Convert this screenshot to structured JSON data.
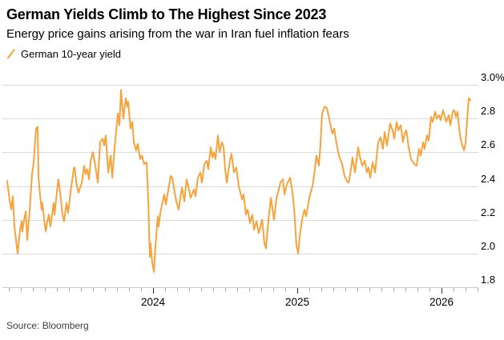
{
  "colors": {
    "accent_orange": "#F7A33C",
    "gridline": "#DADADA",
    "axis_line": "#C9C9C9",
    "minor_tick": "#ABABAB",
    "major_tick": "#333333",
    "text": "#000000"
  },
  "chart_data": {
    "type": "line",
    "title": "German Yields Climb to The Highest Since 2023",
    "subtitle": "Energy price gains arising from the war in Iran fuel inflation fears",
    "source": "Source: Bloomberg",
    "legend_position": "top-left",
    "grid": "horizontal",
    "y_axis": {
      "side": "right",
      "range": [
        1.8,
        3.0
      ],
      "ticks": [
        {
          "value": 3.0,
          "label": "3.0%"
        },
        {
          "value": 2.8,
          "label": "2.8"
        },
        {
          "value": 2.6,
          "label": "2.6"
        },
        {
          "value": 2.4,
          "label": "2.4"
        },
        {
          "value": 2.2,
          "label": "2.2"
        },
        {
          "value": 2.0,
          "label": "2.0"
        },
        {
          "value": 1.8,
          "label": "1.8"
        }
      ]
    },
    "x_axis": {
      "range": [
        2022.95,
        2026.26
      ],
      "minor_tick_interval_years": 0.08333,
      "ticks": [
        {
          "value": 2024,
          "label": "2024"
        },
        {
          "value": 2025,
          "label": "2025"
        },
        {
          "value": 2026,
          "label": "2026"
        }
      ]
    },
    "series": [
      {
        "name": "German 10-year yield",
        "color": "#F7A33C",
        "points": [
          [
            2022.989,
            2.43
          ],
          [
            2023.006,
            2.31
          ],
          [
            2023.017,
            2.26
          ],
          [
            2023.028,
            2.34
          ],
          [
            2023.039,
            2.16
          ],
          [
            2023.05,
            2.08
          ],
          [
            2023.061,
            2.0
          ],
          [
            2023.078,
            2.14
          ],
          [
            2023.089,
            2.19
          ],
          [
            2023.094,
            2.13
          ],
          [
            2023.106,
            2.2
          ],
          [
            2023.117,
            2.25
          ],
          [
            2023.128,
            2.08
          ],
          [
            2023.144,
            2.25
          ],
          [
            2023.161,
            2.47
          ],
          [
            2023.172,
            2.54
          ],
          [
            2023.189,
            2.74
          ],
          [
            2023.2,
            2.75
          ],
          [
            2023.206,
            2.45
          ],
          [
            2023.217,
            2.34
          ],
          [
            2023.228,
            2.26
          ],
          [
            2023.233,
            2.3
          ],
          [
            2023.244,
            2.21
          ],
          [
            2023.256,
            2.13
          ],
          [
            2023.267,
            2.19
          ],
          [
            2023.278,
            2.23
          ],
          [
            2023.289,
            2.16
          ],
          [
            2023.311,
            2.3
          ],
          [
            2023.317,
            2.23
          ],
          [
            2023.339,
            2.41
          ],
          [
            2023.344,
            2.44
          ],
          [
            2023.356,
            2.36
          ],
          [
            2023.372,
            2.23
          ],
          [
            2023.383,
            2.19
          ],
          [
            2023.4,
            2.3
          ],
          [
            2023.411,
            2.24
          ],
          [
            2023.428,
            2.36
          ],
          [
            2023.45,
            2.5
          ],
          [
            2023.456,
            2.51
          ],
          [
            2023.467,
            2.42
          ],
          [
            2023.483,
            2.36
          ],
          [
            2023.506,
            2.42
          ],
          [
            2023.522,
            2.52
          ],
          [
            2023.533,
            2.47
          ],
          [
            2023.544,
            2.5
          ],
          [
            2023.556,
            2.44
          ],
          [
            2023.567,
            2.55
          ],
          [
            2023.583,
            2.6
          ],
          [
            2023.6,
            2.52
          ],
          [
            2023.617,
            2.42
          ],
          [
            2023.633,
            2.66
          ],
          [
            2023.65,
            2.68
          ],
          [
            2023.661,
            2.64
          ],
          [
            2023.672,
            2.7
          ],
          [
            2023.689,
            2.48
          ],
          [
            2023.706,
            2.58
          ],
          [
            2023.717,
            2.45
          ],
          [
            2023.733,
            2.62
          ],
          [
            2023.756,
            2.83
          ],
          [
            2023.767,
            2.76
          ],
          [
            2023.778,
            2.97
          ],
          [
            2023.794,
            2.8
          ],
          [
            2023.811,
            2.92
          ],
          [
            2023.822,
            2.87
          ],
          [
            2023.828,
            2.9
          ],
          [
            2023.844,
            2.74
          ],
          [
            2023.856,
            2.78
          ],
          [
            2023.867,
            2.66
          ],
          [
            2023.883,
            2.61
          ],
          [
            2023.894,
            2.65
          ],
          [
            2023.911,
            2.56
          ],
          [
            2023.922,
            2.58
          ],
          [
            2023.939,
            2.53
          ],
          [
            2023.956,
            2.54
          ],
          [
            2023.967,
            2.3
          ],
          [
            2023.978,
            1.98
          ],
          [
            2023.983,
            2.06
          ],
          [
            2023.994,
            1.95
          ],
          [
            2024.006,
            1.89
          ],
          [
            2024.017,
            2.05
          ],
          [
            2024.033,
            2.22
          ],
          [
            2024.039,
            2.16
          ],
          [
            2024.05,
            2.24
          ],
          [
            2024.067,
            2.31
          ],
          [
            2024.078,
            2.35
          ],
          [
            2024.089,
            2.29
          ],
          [
            2024.106,
            2.38
          ],
          [
            2024.122,
            2.46
          ],
          [
            2024.133,
            2.45
          ],
          [
            2024.15,
            2.36
          ],
          [
            2024.161,
            2.31
          ],
          [
            2024.178,
            2.26
          ],
          [
            2024.189,
            2.33
          ],
          [
            2024.2,
            2.39
          ],
          [
            2024.217,
            2.31
          ],
          [
            2024.233,
            2.44
          ],
          [
            2024.244,
            2.4
          ],
          [
            2024.261,
            2.33
          ],
          [
            2024.283,
            2.38
          ],
          [
            2024.294,
            2.34
          ],
          [
            2024.311,
            2.45
          ],
          [
            2024.328,
            2.48
          ],
          [
            2024.339,
            2.42
          ],
          [
            2024.356,
            2.53
          ],
          [
            2024.372,
            2.55
          ],
          [
            2024.383,
            2.5
          ],
          [
            2024.4,
            2.63
          ],
          [
            2024.411,
            2.57
          ],
          [
            2024.422,
            2.6
          ],
          [
            2024.433,
            2.56
          ],
          [
            2024.45,
            2.7
          ],
          [
            2024.461,
            2.6
          ],
          [
            2024.478,
            2.66
          ],
          [
            2024.489,
            2.63
          ],
          [
            2024.5,
            2.5
          ],
          [
            2024.511,
            2.42
          ],
          [
            2024.533,
            2.55
          ],
          [
            2024.544,
            2.59
          ],
          [
            2024.561,
            2.48
          ],
          [
            2024.578,
            2.51
          ],
          [
            2024.594,
            2.4
          ],
          [
            2024.617,
            2.32
          ],
          [
            2024.628,
            2.35
          ],
          [
            2024.644,
            2.23
          ],
          [
            2024.656,
            2.26
          ],
          [
            2024.672,
            2.18
          ],
          [
            2024.689,
            2.23
          ],
          [
            2024.7,
            2.14
          ],
          [
            2024.717,
            2.19
          ],
          [
            2024.733,
            2.12
          ],
          [
            2024.756,
            2.2
          ],
          [
            2024.772,
            2.06
          ],
          [
            2024.783,
            2.03
          ],
          [
            2024.8,
            2.2
          ],
          [
            2024.817,
            2.33
          ],
          [
            2024.839,
            2.2
          ],
          [
            2024.856,
            2.33
          ],
          [
            2024.872,
            2.38
          ],
          [
            2024.883,
            2.42
          ],
          [
            2024.9,
            2.44
          ],
          [
            2024.911,
            2.35
          ],
          [
            2024.928,
            2.41
          ],
          [
            2024.95,
            2.45
          ],
          [
            2024.967,
            2.36
          ],
          [
            2024.978,
            2.27
          ],
          [
            2024.994,
            2.05
          ],
          [
            2025.006,
            2.0
          ],
          [
            2025.017,
            2.1
          ],
          [
            2025.033,
            2.2
          ],
          [
            2025.05,
            2.26
          ],
          [
            2025.061,
            2.22
          ],
          [
            2025.078,
            2.3
          ],
          [
            2025.089,
            2.35
          ],
          [
            2025.106,
            2.4
          ],
          [
            2025.122,
            2.5
          ],
          [
            2025.133,
            2.58
          ],
          [
            2025.15,
            2.52
          ],
          [
            2025.161,
            2.65
          ],
          [
            2025.172,
            2.83
          ],
          [
            2025.189,
            2.87
          ],
          [
            2025.206,
            2.86
          ],
          [
            2025.228,
            2.77
          ],
          [
            2025.244,
            2.71
          ],
          [
            2025.256,
            2.74
          ],
          [
            2025.272,
            2.65
          ],
          [
            2025.289,
            2.58
          ],
          [
            2025.311,
            2.53
          ],
          [
            2025.328,
            2.46
          ],
          [
            2025.344,
            2.43
          ],
          [
            2025.356,
            2.42
          ],
          [
            2025.372,
            2.5
          ],
          [
            2025.383,
            2.57
          ],
          [
            2025.4,
            2.48
          ],
          [
            2025.422,
            2.63
          ],
          [
            2025.433,
            2.58
          ],
          [
            2025.45,
            2.52
          ],
          [
            2025.467,
            2.55
          ],
          [
            2025.483,
            2.48
          ],
          [
            2025.494,
            2.51
          ],
          [
            2025.506,
            2.45
          ],
          [
            2025.522,
            2.54
          ],
          [
            2025.539,
            2.48
          ],
          [
            2025.561,
            2.66
          ],
          [
            2025.578,
            2.69
          ],
          [
            2025.594,
            2.62
          ],
          [
            2025.606,
            2.72
          ],
          [
            2025.622,
            2.64
          ],
          [
            2025.644,
            2.77
          ],
          [
            2025.661,
            2.73
          ],
          [
            2025.672,
            2.68
          ],
          [
            2025.689,
            2.78
          ],
          [
            2025.7,
            2.73
          ],
          [
            2025.717,
            2.76
          ],
          [
            2025.733,
            2.66
          ],
          [
            2025.744,
            2.71
          ],
          [
            2025.756,
            2.73
          ],
          [
            2025.772,
            2.63
          ],
          [
            2025.789,
            2.56
          ],
          [
            2025.811,
            2.53
          ],
          [
            2025.828,
            2.52
          ],
          [
            2025.844,
            2.62
          ],
          [
            2025.856,
            2.58
          ],
          [
            2025.872,
            2.66
          ],
          [
            2025.883,
            2.62
          ],
          [
            2025.9,
            2.7
          ],
          [
            2025.911,
            2.67
          ],
          [
            2025.928,
            2.81
          ],
          [
            2025.939,
            2.78
          ],
          [
            2025.956,
            2.84
          ],
          [
            2025.967,
            2.8
          ],
          [
            2025.983,
            2.82
          ],
          [
            2025.994,
            2.79
          ],
          [
            2026.011,
            2.85
          ],
          [
            2026.033,
            2.78
          ],
          [
            2026.05,
            2.82
          ],
          [
            2026.061,
            2.76
          ],
          [
            2026.078,
            2.84
          ],
          [
            2026.089,
            2.85
          ],
          [
            2026.1,
            2.81
          ],
          [
            2026.111,
            2.84
          ],
          [
            2026.122,
            2.74
          ],
          [
            2026.133,
            2.68
          ],
          [
            2026.144,
            2.64
          ],
          [
            2026.156,
            2.61
          ],
          [
            2026.167,
            2.66
          ],
          [
            2026.178,
            2.79
          ],
          [
            2026.189,
            2.92
          ],
          [
            2026.2,
            2.91
          ]
        ]
      }
    ]
  }
}
